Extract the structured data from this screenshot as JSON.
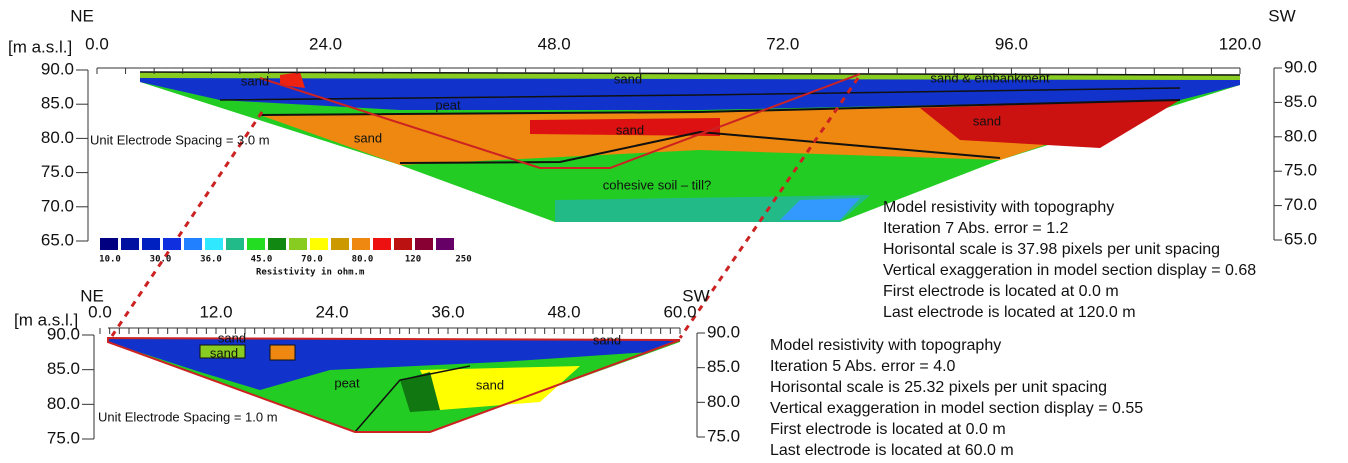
{
  "top": {
    "direction_left": "NE",
    "direction_right": "SW",
    "axis_label": "[m a.s.l.]",
    "xticks": [
      "0.0",
      "24.0",
      "48.0",
      "72.0",
      "96.0",
      "120.0"
    ],
    "yticks": [
      "90.0",
      "85.0",
      "80.0",
      "75.0",
      "70.0",
      "65.0"
    ],
    "labels": [
      "sand",
      "peat",
      "sand",
      "sand & embankment",
      "sand",
      "sand",
      "sand",
      "cohesive soil – till?"
    ],
    "spacing": "Unit Electrode Spacing = 3.0 m",
    "info": [
      "Model resistivity with topography",
      "Iteration 7 Abs. error = 1.2",
      "Horisontal scale is 37.98 pixels per unit spacing",
      "Vertical exaggeration in model section display = 0.68",
      "First electrode is located at 0.0 m",
      "Last electrode is  located at 120.0 m"
    ]
  },
  "legend": {
    "values": [
      "10.0",
      "30.0",
      "36.0",
      "45.0",
      "70.0",
      "80.0",
      "120",
      "250"
    ],
    "title": "Resistivity in ohm.m"
  },
  "bottom": {
    "direction_left": "NE",
    "direction_right": "SW",
    "axis_label": "[m a.s.l.]",
    "xticks": [
      "0.0",
      "12.0",
      "24.0",
      "36.0",
      "48.0",
      "60.0"
    ],
    "yticks": [
      "90.0",
      "85.0",
      "80.0",
      "75.0"
    ],
    "labels": [
      "sand",
      "sand",
      "peat",
      "sand",
      "sand"
    ],
    "spacing": "Unit Electrode Spacing = 1.0 m",
    "info": [
      "Model resistivity with topography",
      "Iteration 5 Abs. error = 4.0",
      "Horisontal scale is 25.32 pixels per unit spacing",
      "Vertical exaggeration in model section display = 0.55",
      "First electrode is located at 0.0 m",
      "Last electrode is  located at 60.0 m"
    ]
  }
}
